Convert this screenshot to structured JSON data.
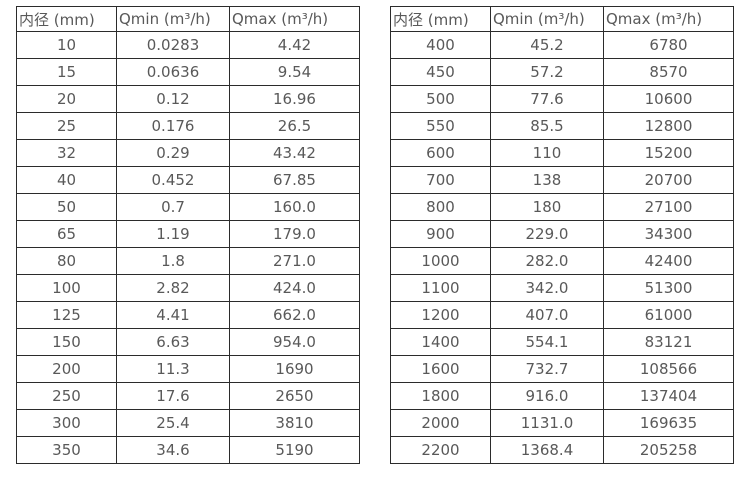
{
  "tables": [
    {
      "name": "small-diameter-flow-table",
      "headers": [
        "内径 (mm)",
        "Qmin (m³/h)",
        "Qmax (m³/h)"
      ],
      "rows": [
        [
          "10",
          "0.0283",
          "4.42"
        ],
        [
          "15",
          "0.0636",
          "9.54"
        ],
        [
          "20",
          "0.12",
          "16.96"
        ],
        [
          "25",
          "0.176",
          "26.5"
        ],
        [
          "32",
          "0.29",
          "43.42"
        ],
        [
          "40",
          "0.452",
          "67.85"
        ],
        [
          "50",
          "0.7",
          "160.0"
        ],
        [
          "65",
          "1.19",
          "179.0"
        ],
        [
          "80",
          "1.8",
          "271.0"
        ],
        [
          "100",
          "2.82",
          "424.0"
        ],
        [
          "125",
          "4.41",
          "662.0"
        ],
        [
          "150",
          "6.63",
          "954.0"
        ],
        [
          "200",
          "11.3",
          "1690"
        ],
        [
          "250",
          "17.6",
          "2650"
        ],
        [
          "300",
          "25.4",
          "3810"
        ],
        [
          "350",
          "34.6",
          "5190"
        ]
      ]
    },
    {
      "name": "large-diameter-flow-table",
      "headers": [
        "内径 (mm)",
        "Qmin (m³/h)",
        "Qmax (m³/h)"
      ],
      "rows": [
        [
          "400",
          "45.2",
          "6780"
        ],
        [
          "450",
          "57.2",
          "8570"
        ],
        [
          "500",
          "77.6",
          "10600"
        ],
        [
          "550",
          "85.5",
          "12800"
        ],
        [
          "600",
          "110",
          "15200"
        ],
        [
          "700",
          "138",
          "20700"
        ],
        [
          "800",
          "180",
          "27100"
        ],
        [
          "900",
          "229.0",
          "34300"
        ],
        [
          "1000",
          "282.0",
          "42400"
        ],
        [
          "1100",
          "342.0",
          "51300"
        ],
        [
          "1200",
          "407.0",
          "61000"
        ],
        [
          "1400",
          "554.1",
          "83121"
        ],
        [
          "1600",
          "732.7",
          "108566"
        ],
        [
          "1800",
          "916.0",
          "137404"
        ],
        [
          "2000",
          "1131.0",
          "169635"
        ],
        [
          "2200",
          "1368.4",
          "205258"
        ]
      ]
    }
  ],
  "colors": {
    "text": "#595959",
    "border": "#2b2b2b",
    "background": "#ffffff"
  }
}
